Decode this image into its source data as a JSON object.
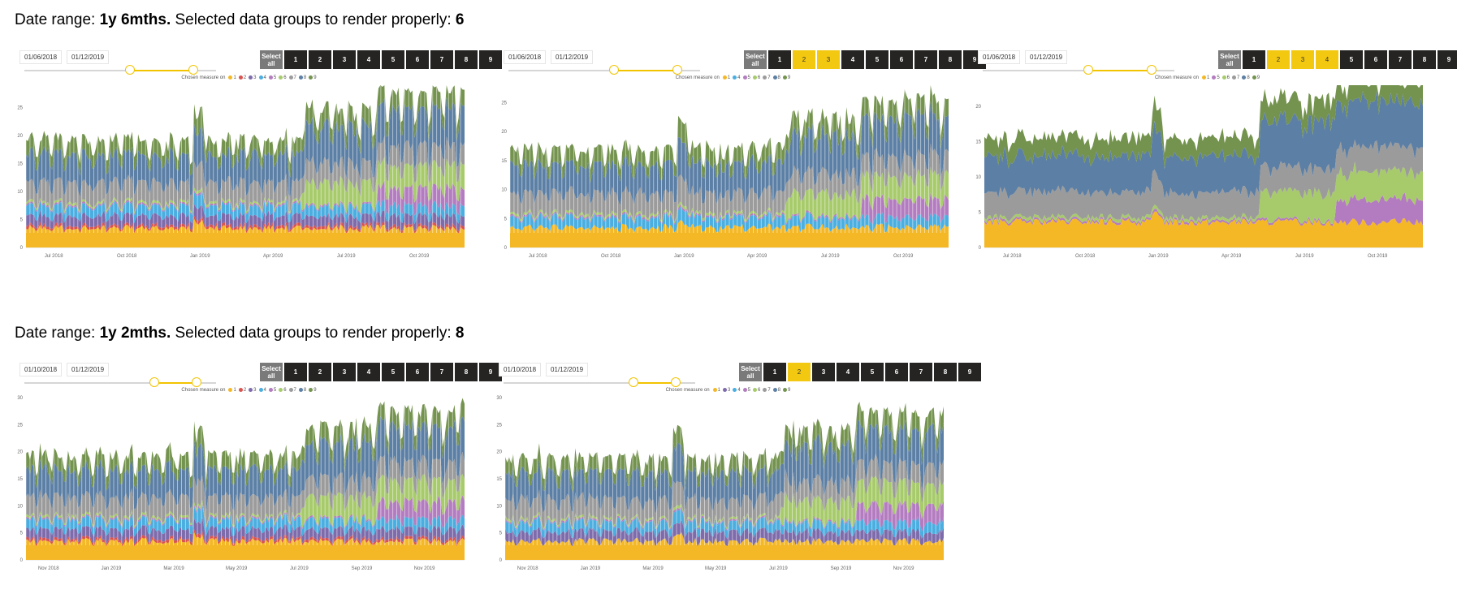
{
  "sections": [
    {
      "label_prefix": "Date range: ",
      "range": "1y 6mths.",
      "label_mid": " Selected data groups to render properly: ",
      "count": "6"
    },
    {
      "label_prefix": "Date range: ",
      "range": "1y 2mths.",
      "label_mid": " Selected data groups to render properly: ",
      "count": "8"
    }
  ],
  "colors": {
    "1": "#f4b826",
    "2": "#d9534f",
    "3": "#7e6bab",
    "4": "#4aaee0",
    "5": "#b47cc0",
    "6": "#a7cb6b",
    "7": "#9b9b9b",
    "8": "#5c7fa5",
    "9": "#74934f"
  },
  "panels": [
    {
      "start_date": "01/06/2018",
      "end_date": "01/12/2019",
      "slider": [
        0.55,
        0.88
      ],
      "selectall": "Select all",
      "buttons": [
        "1",
        "2",
        "3",
        "4",
        "5",
        "6",
        "7",
        "8",
        "9"
      ],
      "selected": [],
      "legend_title": "Chosen measure on",
      "legend": [
        "1",
        "2",
        "3",
        "4",
        "5",
        "6",
        "7",
        "8",
        "9"
      ],
      "chart_data": {
        "type": "area",
        "style": "bars",
        "x_ticks": [
          "Jul 2018",
          "Oct 2018",
          "Jan 2019",
          "Apr 2019",
          "Jul 2019",
          "Oct 2019"
        ],
        "y_ticks": [
          "0",
          "5",
          "10",
          "15",
          "20",
          "25"
        ],
        "ylim": [
          0,
          29
        ],
        "series": [
          "1",
          "2",
          "3",
          "4",
          "5",
          "6",
          "7",
          "8",
          "9"
        ],
        "approx_total": "about 18 until Jun 2019, about 22 until Sep 2019, about 26 to Dec 2019"
      }
    },
    {
      "start_date": "01/06/2018",
      "end_date": "01/12/2019",
      "slider": [
        0.55,
        0.88
      ],
      "selectall": "Select all",
      "buttons": [
        "1",
        "2",
        "3",
        "4",
        "5",
        "6",
        "7",
        "8",
        "9"
      ],
      "selected": [
        "2",
        "3"
      ],
      "legend_title": "Chosen measure on",
      "legend": [
        "1",
        "4",
        "5",
        "6",
        "7",
        "8",
        "9"
      ],
      "chart_data": {
        "type": "area",
        "style": "bars",
        "x_ticks": [
          "Jul 2018",
          "Oct 2018",
          "Jan 2019",
          "Apr 2019",
          "Jul 2019",
          "Oct 2019"
        ],
        "y_ticks": [
          "0",
          "5",
          "10",
          "15",
          "20",
          "25"
        ],
        "ylim": [
          0,
          28
        ],
        "series": [
          "1",
          "4",
          "5",
          "6",
          "7",
          "8",
          "9"
        ],
        "approx_total": "about 16 until Jun 2019, about 21 until Sep 2019, about 25 to Dec 2019"
      }
    },
    {
      "start_date": "01/06/2018",
      "end_date": "01/12/2019",
      "slider": [
        0.55,
        0.88
      ],
      "selectall": "Select all",
      "buttons": [
        "1",
        "2",
        "3",
        "4",
        "5",
        "6",
        "7",
        "8",
        "9"
      ],
      "selected": [
        "2",
        "3",
        "4"
      ],
      "legend_title": "Chosen measure on",
      "legend": [
        "1",
        "5",
        "6",
        "7",
        "8",
        "9"
      ],
      "chart_data": {
        "type": "area",
        "style": "smooth",
        "x_ticks": [
          "Jul 2018",
          "Oct 2018",
          "Jan 2019",
          "Apr 2019",
          "Jul 2019",
          "Oct 2019"
        ],
        "y_ticks": [
          "0",
          "5",
          "10",
          "15",
          "20"
        ],
        "ylim": [
          0,
          23
        ],
        "series": [
          "1",
          "5",
          "6",
          "7",
          "8",
          "9"
        ],
        "approx_total": "about 14 until Jun 2019, about 19 until Sep 2019, about 22 to Dec 2019"
      }
    },
    {
      "start_date": "01/10/2018",
      "end_date": "01/12/2019",
      "slider": [
        0.68,
        0.9
      ],
      "selectall": "Select all",
      "buttons": [
        "1",
        "2",
        "3",
        "4",
        "5",
        "6",
        "7",
        "8",
        "9"
      ],
      "selected": [],
      "legend_title": "Chosen measure on",
      "legend": [
        "1",
        "2",
        "3",
        "4",
        "5",
        "6",
        "7",
        "8",
        "9"
      ],
      "chart_data": {
        "type": "area",
        "style": "bars",
        "x_ticks": [
          "Nov 2018",
          "Jan 2019",
          "Mar 2019",
          "May 2019",
          "Jul 2019",
          "Sep 2019",
          "Nov 2019"
        ],
        "y_ticks": [
          "0",
          "5",
          "10",
          "15",
          "20",
          "25",
          "30"
        ],
        "ylim": [
          0,
          30
        ],
        "series": [
          "1",
          "2",
          "3",
          "4",
          "5",
          "6",
          "7",
          "8",
          "9"
        ],
        "approx_total": "about 18 until Jun 2019, about 22 until Sep 2019, about 26 to Dec 2019"
      }
    },
    {
      "start_date": "01/10/2018",
      "end_date": "01/12/2019",
      "slider": [
        0.68,
        0.9
      ],
      "selectall": "Select all",
      "buttons": [
        "1",
        "2",
        "3",
        "4",
        "5",
        "6",
        "7",
        "8",
        "9"
      ],
      "selected": [
        "2"
      ],
      "legend_title": "Chosen measure on",
      "legend": [
        "1",
        "3",
        "4",
        "5",
        "6",
        "7",
        "8",
        "9"
      ],
      "chart_data": {
        "type": "area",
        "style": "bars",
        "x_ticks": [
          "Nov 2018",
          "Jan 2019",
          "Mar 2019",
          "May 2019",
          "Jul 2019",
          "Sep 2019",
          "Nov 2019"
        ],
        "y_ticks": [
          "0",
          "5",
          "10",
          "15",
          "20",
          "25",
          "30"
        ],
        "ylim": [
          0,
          30
        ],
        "series": [
          "1",
          "3",
          "4",
          "5",
          "6",
          "7",
          "8",
          "9"
        ],
        "approx_total": "about 18 until Jun 2019, about 22 until Sep 2019, about 26 to Dec 2019"
      }
    }
  ]
}
